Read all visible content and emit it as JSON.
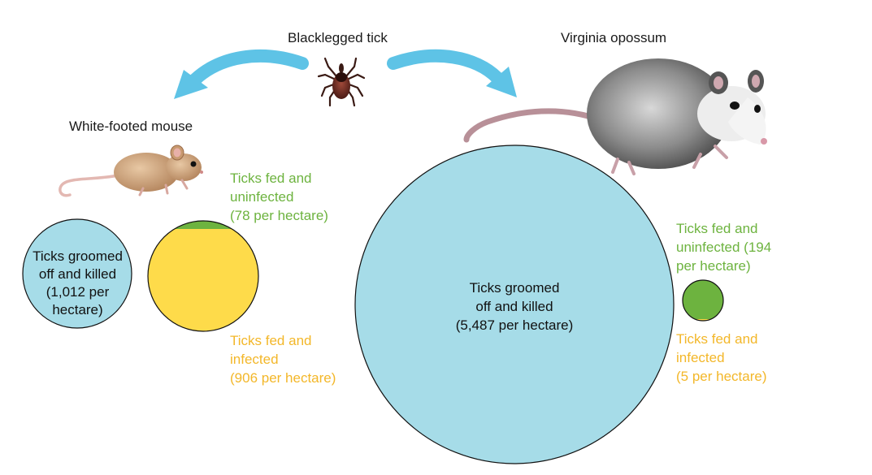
{
  "title_tick": "Blacklegged tick",
  "mouse": {
    "title": "White-footed mouse",
    "groomed": [
      "Ticks groomed",
      "off and killed",
      "(1,012 per",
      "hectare)"
    ],
    "uninfected": [
      "Ticks fed and",
      "uninfected",
      "(78 per hectare)"
    ],
    "infected": [
      "Ticks fed and",
      "infected",
      "(906 per hectare)"
    ]
  },
  "opossum": {
    "title": "Virginia opossum",
    "groomed": [
      "Ticks groomed",
      "off and killed",
      "(5,487 per hectare)"
    ],
    "uninfected": [
      "Ticks fed and",
      "uninfected (194",
      "per hectare)"
    ],
    "infected": [
      "Ticks fed and",
      "infected",
      "(5 per hectare)"
    ]
  },
  "colors": {
    "groomed_blue": "#a6dce8",
    "uninfected_green": "#6db33f",
    "infected_yellow": "#fedb4a",
    "label_green": "#6db33f",
    "label_yellow": "#f3b729",
    "arrow_blue": "#5ec3e6"
  },
  "icons": [
    "tick-icon",
    "mouse-icon",
    "opossum-icon",
    "arrow-left-icon",
    "arrow-right-icon"
  ]
}
